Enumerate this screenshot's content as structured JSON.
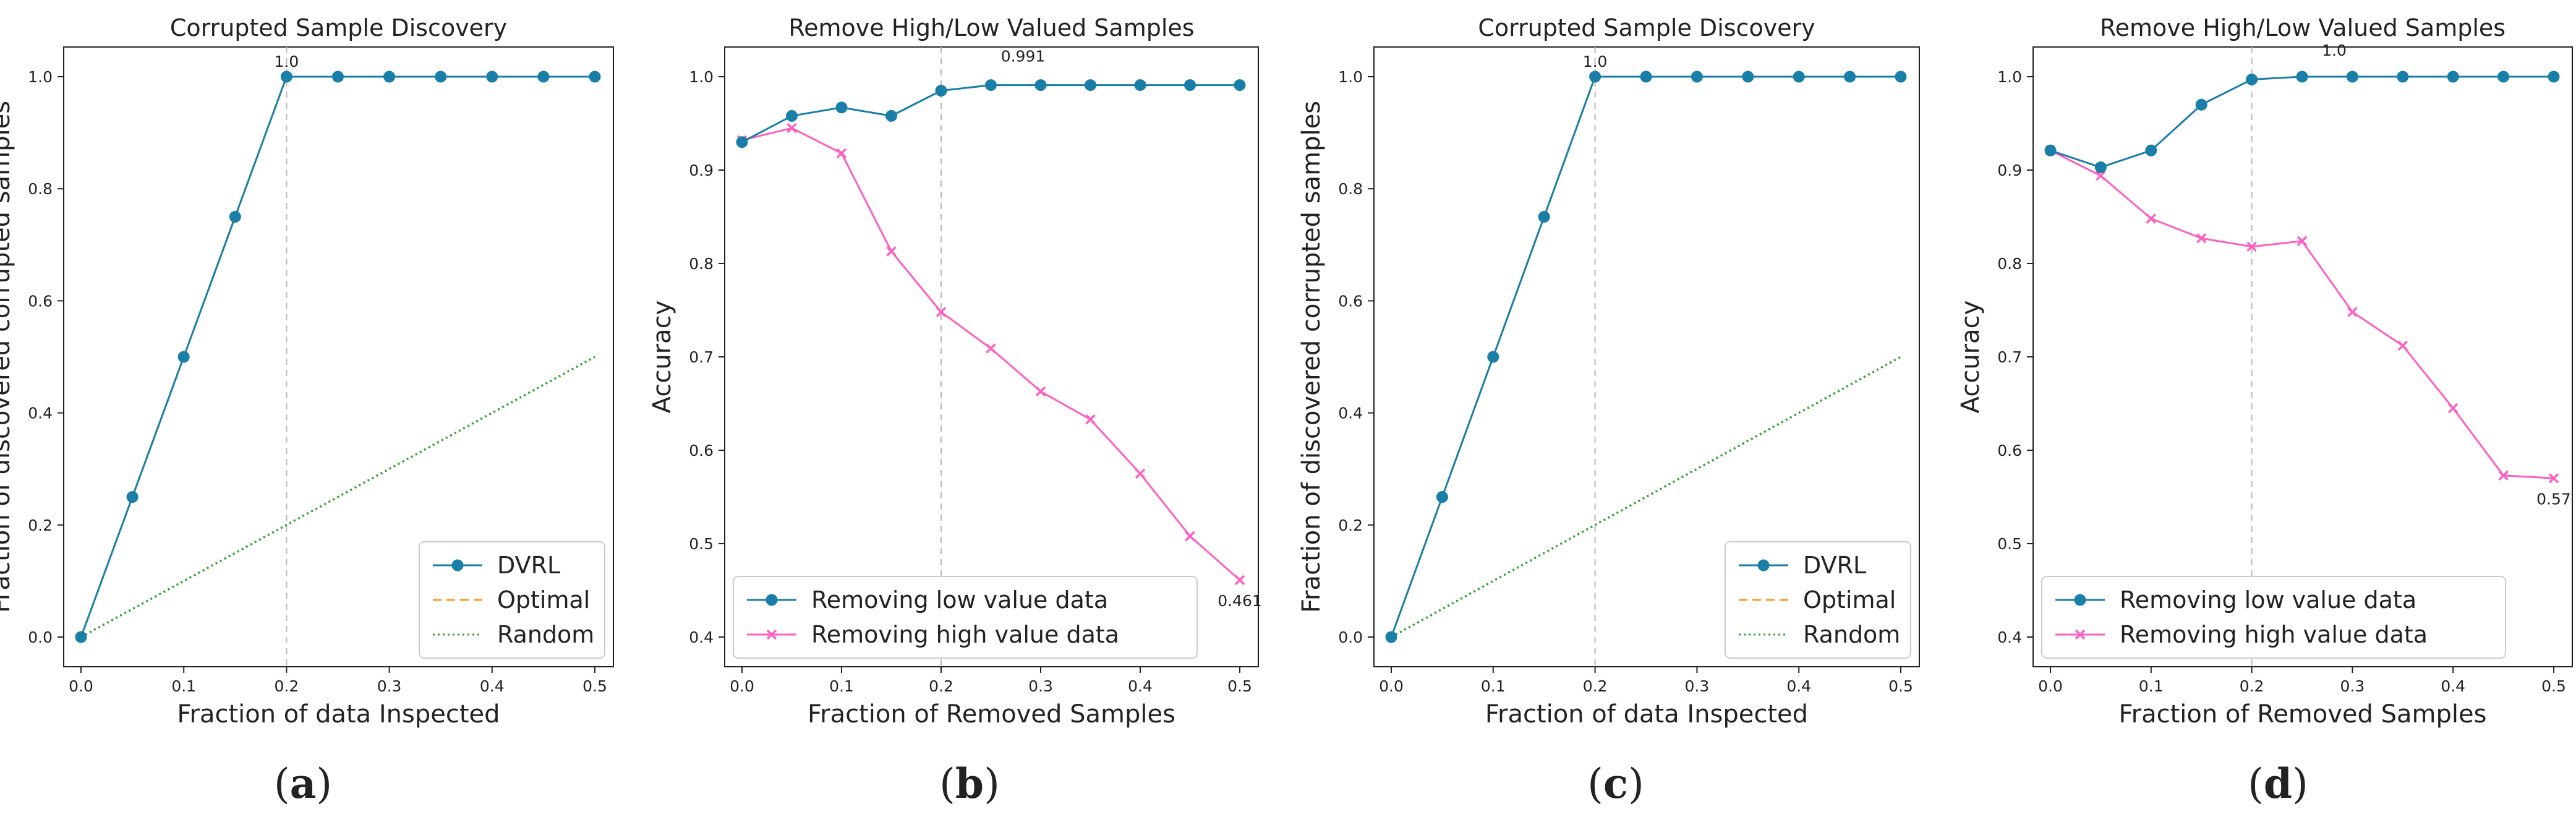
{
  "colors": {
    "series_blue": "#1a7fa8",
    "series_pink": "#ff5fbf",
    "optimal_orange": "#ff9a20",
    "random_green": "#2ca02c",
    "refline_gray": "#b8b8b8"
  },
  "chart_data": [
    {
      "panel": "a",
      "type": "line",
      "title": "Corrupted Sample Discovery",
      "xlabel": "Fraction of data Inspected",
      "ylabel": "Fraction of discovered corrupted samples",
      "xlim": [
        0,
        0.5
      ],
      "ylim": [
        0,
        1.0
      ],
      "x_ticks": [
        "0.0",
        "0.1",
        "0.2",
        "0.3",
        "0.4",
        "0.5"
      ],
      "y_ticks": [
        "0.0",
        "0.2",
        "0.4",
        "0.6",
        "0.8",
        "1.0"
      ],
      "reference_x": 0.2,
      "legend_position": "lower-right",
      "x": [
        0.0,
        0.05,
        0.1,
        0.15,
        0.2,
        0.25,
        0.3,
        0.35,
        0.4,
        0.45,
        0.5
      ],
      "series": [
        {
          "name": "DVRL",
          "style": "solid-circle",
          "values": [
            0.0,
            0.25,
            0.5,
            0.75,
            1.0,
            1.0,
            1.0,
            1.0,
            1.0,
            1.0,
            1.0
          ]
        },
        {
          "name": "Optimal",
          "style": "dashed",
          "values": [
            0.0,
            0.25,
            0.5,
            0.75,
            1.0,
            1.0,
            1.0,
            1.0,
            1.0,
            1.0,
            1.0
          ]
        },
        {
          "name": "Random",
          "style": "dotted",
          "values": [
            0.0,
            0.05,
            0.1,
            0.15,
            0.2,
            0.25,
            0.3,
            0.35,
            0.4,
            0.45,
            0.5
          ]
        }
      ],
      "annotations": [
        {
          "text": "1.0",
          "x": 0.2,
          "y": 1.0
        }
      ]
    },
    {
      "panel": "b",
      "type": "line",
      "title": "Remove High/Low Valued Samples",
      "xlabel": "Fraction of Removed Samples",
      "ylabel": "Accuracy",
      "xlim": [
        0,
        0.5
      ],
      "ylim": [
        0.4,
        1.0
      ],
      "x_ticks": [
        "0.0",
        "0.1",
        "0.2",
        "0.3",
        "0.4",
        "0.5"
      ],
      "y_ticks": [
        "0.4",
        "0.5",
        "0.6",
        "0.7",
        "0.8",
        "0.9",
        "1.0"
      ],
      "reference_x": 0.2,
      "legend_position": "lower-left",
      "x": [
        0.0,
        0.05,
        0.1,
        0.15,
        0.2,
        0.25,
        0.3,
        0.35,
        0.4,
        0.45,
        0.5
      ],
      "series": [
        {
          "name": "Removing low value data",
          "style": "solid-circle",
          "values": [
            0.93,
            0.958,
            0.967,
            0.958,
            0.985,
            0.991,
            0.991,
            0.991,
            0.991,
            0.991,
            0.991
          ]
        },
        {
          "name": "Removing high value data",
          "style": "solid-x",
          "values": [
            0.932,
            0.945,
            0.918,
            0.813,
            0.748,
            0.709,
            0.663,
            0.633,
            0.575,
            0.508,
            0.461
          ]
        }
      ],
      "annotations": [
        {
          "text": "0.991",
          "x": 0.25,
          "y": 0.991
        },
        {
          "text": "0.461",
          "x": 0.5,
          "y": 0.461
        }
      ]
    },
    {
      "panel": "c",
      "type": "line",
      "title": "Corrupted Sample Discovery",
      "xlabel": "Fraction of data Inspected",
      "ylabel": "Fraction of discovered corrupted samples",
      "xlim": [
        0,
        0.5
      ],
      "ylim": [
        0,
        1.0
      ],
      "x_ticks": [
        "0.0",
        "0.1",
        "0.2",
        "0.3",
        "0.4",
        "0.5"
      ],
      "y_ticks": [
        "0.0",
        "0.2",
        "0.4",
        "0.6",
        "0.8",
        "1.0"
      ],
      "reference_x": 0.2,
      "legend_position": "lower-right",
      "x": [
        0.0,
        0.05,
        0.1,
        0.15,
        0.2,
        0.25,
        0.3,
        0.35,
        0.4,
        0.45,
        0.5
      ],
      "series": [
        {
          "name": "DVRL",
          "style": "solid-circle",
          "values": [
            0.0,
            0.25,
            0.5,
            0.75,
            1.0,
            1.0,
            1.0,
            1.0,
            1.0,
            1.0,
            1.0
          ]
        },
        {
          "name": "Optimal",
          "style": "dashed",
          "values": [
            0.0,
            0.25,
            0.5,
            0.75,
            1.0,
            1.0,
            1.0,
            1.0,
            1.0,
            1.0,
            1.0
          ]
        },
        {
          "name": "Random",
          "style": "dotted",
          "values": [
            0.0,
            0.05,
            0.1,
            0.15,
            0.2,
            0.25,
            0.3,
            0.35,
            0.4,
            0.45,
            0.5
          ]
        }
      ],
      "annotations": [
        {
          "text": "1.0",
          "x": 0.2,
          "y": 1.0
        }
      ]
    },
    {
      "panel": "d",
      "type": "line",
      "title": "Remove High/Low Valued Samples",
      "xlabel": "Fraction of Removed Samples",
      "ylabel": "Accuracy",
      "xlim": [
        0,
        0.5
      ],
      "ylim": [
        0.4,
        1.0
      ],
      "x_ticks": [
        "0.0",
        "0.1",
        "0.2",
        "0.3",
        "0.4",
        "0.5"
      ],
      "y_ticks": [
        "0.4",
        "0.5",
        "0.6",
        "0.7",
        "0.8",
        "0.9",
        "1.0"
      ],
      "reference_x": 0.2,
      "legend_position": "lower-left",
      "x": [
        0.0,
        0.05,
        0.1,
        0.15,
        0.2,
        0.25,
        0.3,
        0.35,
        0.4,
        0.45,
        0.5
      ],
      "series": [
        {
          "name": "Removing low value data",
          "style": "solid-circle",
          "values": [
            0.921,
            0.903,
            0.921,
            0.97,
            0.997,
            1.0,
            1.0,
            1.0,
            1.0,
            1.0,
            1.0
          ]
        },
        {
          "name": "Removing high value data",
          "style": "solid-x",
          "values": [
            0.921,
            0.894,
            0.848,
            0.827,
            0.818,
            0.824,
            0.748,
            0.712,
            0.645,
            0.573,
            0.57
          ]
        }
      ],
      "annotations": [
        {
          "text": "1.0",
          "x": 0.25,
          "y": 1.0
        },
        {
          "text": "0.57",
          "x": 0.5,
          "y": 0.57
        }
      ]
    }
  ],
  "panel_labels": [
    {
      "open": "(",
      "letter": "a",
      "close": ")"
    },
    {
      "open": "(",
      "letter": "b",
      "close": ")"
    },
    {
      "open": "(",
      "letter": "c",
      "close": ")"
    },
    {
      "open": "(",
      "letter": "d",
      "close": ")"
    }
  ]
}
